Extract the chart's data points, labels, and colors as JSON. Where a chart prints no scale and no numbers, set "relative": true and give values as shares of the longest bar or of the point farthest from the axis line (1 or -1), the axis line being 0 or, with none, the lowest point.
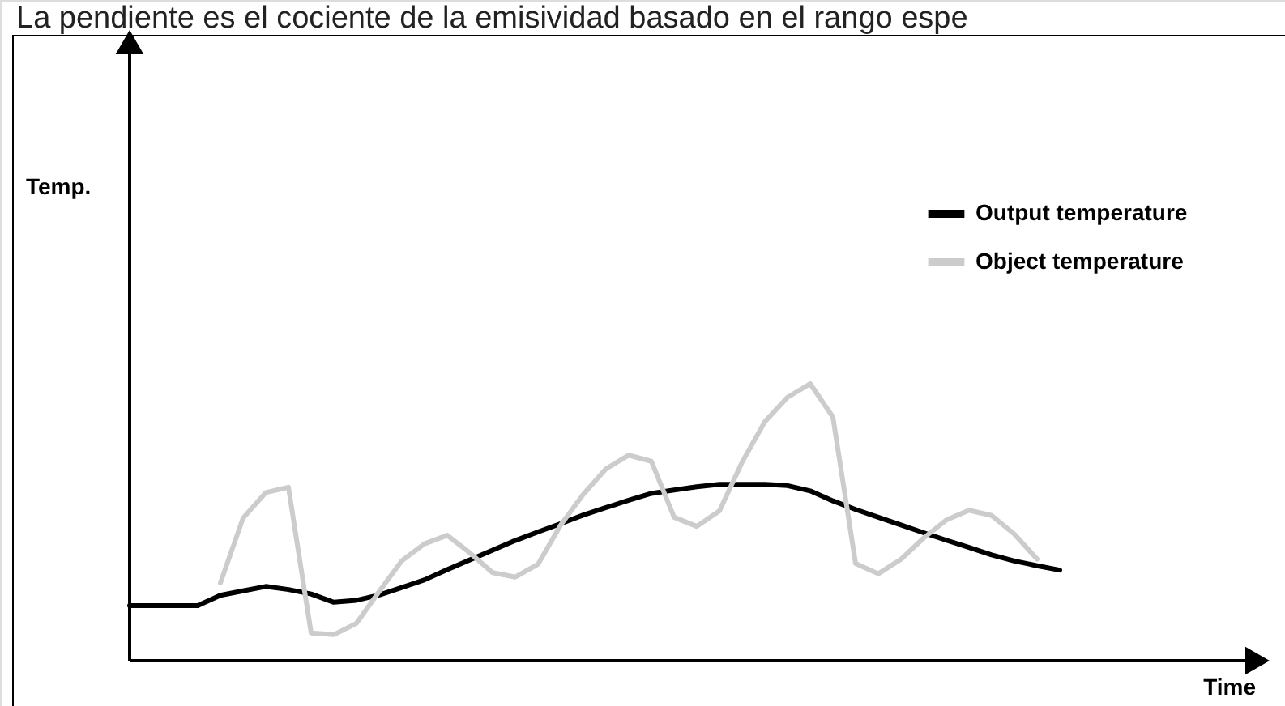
{
  "chart_data": {
    "type": "line",
    "title": "La pendiente es el cociente de la emisividad basado en el rango espe",
    "annotations": [
      "Temp.",
      "Time"
    ],
    "relative": true,
    "grid": false,
    "legend": "top right",
    "categories": [
      null,
      null,
      null,
      null,
      null,
      null,
      null,
      null,
      null,
      null,
      null,
      null,
      null,
      null,
      null,
      null,
      null,
      null,
      null,
      null,
      null,
      null,
      null,
      null,
      null,
      null,
      null,
      null,
      null,
      null,
      null,
      null,
      null,
      null,
      null,
      null,
      null,
      null,
      null,
      null,
      null,
      null
    ],
    "series": [
      {
        "name": "Output temperature",
        "color": "#000000",
        "values": [
          0.199,
          0.199,
          0.199,
          0.199,
          0.236,
          0.252,
          0.268,
          0.257,
          0.241,
          0.211,
          0.218,
          0.237,
          0.264,
          0.292,
          0.329,
          0.364,
          0.399,
          0.434,
          0.465,
          0.495,
          0.526,
          0.553,
          0.579,
          0.604,
          0.616,
          0.628,
          0.637,
          0.637,
          0.637,
          0.632,
          0.613,
          0.577,
          0.546,
          0.518,
          0.49,
          0.462,
          0.435,
          0.409,
          0.382,
          0.36,
          0.343,
          0.327
        ]
      },
      {
        "name": "Object temperature",
        "color": "#cccccc",
        "values": [
          null,
          null,
          null,
          null,
          0.281,
          0.515,
          0.607,
          0.626,
          0.1,
          0.094,
          0.135,
          0.25,
          0.361,
          0.422,
          0.453,
          0.389,
          0.318,
          0.302,
          0.348,
          0.49,
          0.601,
          0.693,
          0.742,
          0.72,
          0.518,
          0.485,
          0.541,
          0.717,
          0.863,
          0.951,
          1,
          0.88,
          0.351,
          0.314,
          0.366,
          0.443,
          0.508,
          0.543,
          0.524,
          0.457,
          0.367,
          null
        ]
      }
    ]
  }
}
